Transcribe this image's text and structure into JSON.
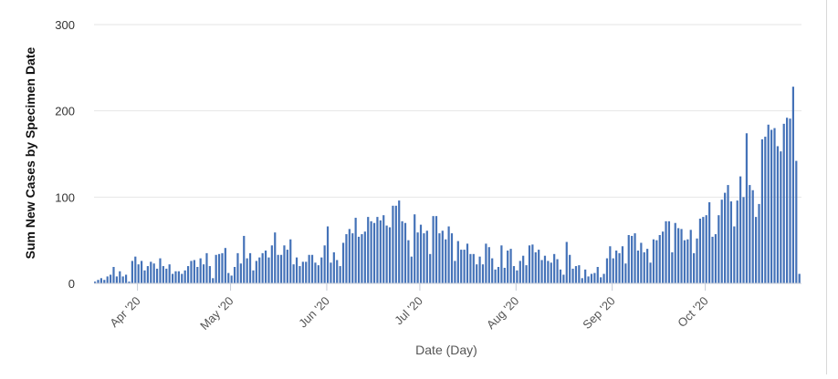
{
  "chart_data": {
    "type": "bar",
    "xlabel": "Date (Day)",
    "ylabel": "Sum New Cases by Specimen Date",
    "ylim": [
      0,
      300
    ],
    "yticks": [
      0,
      100,
      200,
      300
    ],
    "grid": true,
    "bar_color": "#4472b8",
    "x_start_date": "2020-03-18",
    "x_tick_labels": [
      "Apr '20",
      "May '20",
      "Jun '20",
      "Jul '20",
      "Aug '20",
      "Sep '20",
      "Oct '20"
    ],
    "x_tick_dates": [
      "2020-04-01",
      "2020-05-01",
      "2020-06-01",
      "2020-07-01",
      "2020-08-01",
      "2020-09-01",
      "2020-10-01"
    ],
    "values": [
      2,
      4,
      6,
      4,
      8,
      10,
      19,
      8,
      14,
      8,
      10,
      2,
      26,
      31,
      22,
      26,
      15,
      20,
      25,
      23,
      17,
      29,
      20,
      17,
      22,
      11,
      14,
      14,
      11,
      15,
      20,
      26,
      27,
      19,
      29,
      22,
      35,
      20,
      6,
      33,
      34,
      35,
      41,
      12,
      9,
      19,
      35,
      23,
      55,
      29,
      35,
      15,
      26,
      30,
      35,
      38,
      30,
      44,
      59,
      33,
      33,
      44,
      39,
      51,
      22,
      30,
      20,
      25,
      25,
      33,
      33,
      24,
      21,
      30,
      44,
      66,
      24,
      36,
      27,
      20,
      47,
      57,
      63,
      58,
      76,
      54,
      57,
      60,
      77,
      72,
      70,
      77,
      73,
      79,
      67,
      65,
      90,
      90,
      96,
      72,
      70,
      50,
      31,
      80,
      59,
      68,
      58,
      61,
      34,
      78,
      78,
      58,
      61,
      51,
      66,
      58,
      26,
      49,
      39,
      39,
      46,
      34,
      34,
      22,
      31,
      22,
      46,
      42,
      29,
      16,
      19,
      44,
      18,
      38,
      40,
      20,
      15,
      26,
      32,
      21,
      44,
      45,
      36,
      39,
      27,
      32,
      26,
      24,
      34,
      28,
      16,
      10,
      48,
      33,
      17,
      20,
      21,
      6,
      16,
      8,
      11,
      12,
      19,
      7,
      11,
      29,
      43,
      29,
      38,
      35,
      43,
      23,
      56,
      55,
      58,
      38,
      47,
      36,
      40,
      24,
      51,
      50,
      56,
      60,
      72,
      72,
      36,
      70,
      64,
      63,
      50,
      51,
      62,
      35,
      52,
      75,
      77,
      79,
      94,
      54,
      57,
      79,
      97,
      105,
      114,
      95,
      66,
      96,
      124,
      100,
      174,
      114,
      108,
      77,
      92,
      167,
      170,
      184,
      178,
      180,
      159,
      153,
      185,
      192,
      191,
      228,
      142,
      11
    ],
    "note": ""
  }
}
